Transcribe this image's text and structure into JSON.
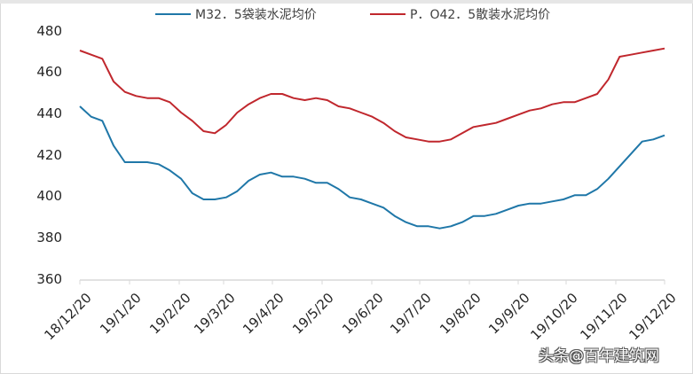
{
  "chart_data": {
    "type": "line",
    "title": "",
    "xlabel": "",
    "ylabel": "",
    "ylim": [
      360,
      480
    ],
    "yticks": [
      360,
      380,
      400,
      420,
      440,
      460,
      480
    ],
    "grid": false,
    "legend_position": "top",
    "x_tick_labels": [
      "18/12/20",
      "19/1/20",
      "19/2/20",
      "19/3/20",
      "19/4/20",
      "19/5/20",
      "19/6/20",
      "19/7/20",
      "19/8/20",
      "19/9/20",
      "19/10/20",
      "19/11/20",
      "19/12/20"
    ],
    "x": [
      "18/12/20",
      "18/12/27",
      "19/1/3",
      "19/1/10",
      "19/1/17",
      "19/1/24",
      "19/1/31",
      "19/2/7",
      "19/2/14",
      "19/2/21",
      "19/2/28",
      "19/3/7",
      "19/3/14",
      "19/3/21",
      "19/3/28",
      "19/4/4",
      "19/4/11",
      "19/4/18",
      "19/4/25",
      "19/5/2",
      "19/5/9",
      "19/5/16",
      "19/5/23",
      "19/5/30",
      "19/6/6",
      "19/6/13",
      "19/6/20",
      "19/6/27",
      "19/7/4",
      "19/7/11",
      "19/7/18",
      "19/7/25",
      "19/8/1",
      "19/8/8",
      "19/8/15",
      "19/8/22",
      "19/8/29",
      "19/9/5",
      "19/9/12",
      "19/9/19",
      "19/9/26",
      "19/10/3",
      "19/10/10",
      "19/10/17",
      "19/10/24",
      "19/10/31",
      "19/11/7",
      "19/11/14",
      "19/11/21",
      "19/11/28",
      "19/12/5",
      "19/12/12",
      "19/12/20"
    ],
    "series": [
      {
        "name": "M32．5袋装水泥均价",
        "color": "#1f77a8",
        "values": [
          444,
          439,
          437,
          425,
          417,
          417,
          417,
          416,
          413,
          409,
          402,
          399,
          399,
          400,
          403,
          408,
          411,
          412,
          410,
          410,
          409,
          407,
          407,
          404,
          400,
          399,
          397,
          395,
          391,
          388,
          386,
          386,
          385,
          386,
          388,
          391,
          391,
          392,
          394,
          396,
          397,
          397,
          398,
          399,
          401,
          401,
          404,
          409,
          415,
          421,
          427,
          428,
          430
        ]
      },
      {
        "name": "P．O42．5散装水泥均价",
        "color": "#c0272d",
        "values": [
          471,
          469,
          467,
          456,
          451,
          449,
          448,
          448,
          446,
          441,
          437,
          432,
          431,
          435,
          441,
          445,
          448,
          450,
          450,
          448,
          447,
          448,
          447,
          444,
          443,
          441,
          439,
          436,
          432,
          429,
          428,
          427,
          427,
          428,
          431,
          434,
          435,
          436,
          438,
          440,
          442,
          443,
          445,
          446,
          446,
          448,
          450,
          457,
          468,
          469,
          470,
          471,
          472
        ]
      }
    ]
  },
  "legend": {
    "items": [
      {
        "label": "M32．5袋装水泥均价",
        "color": "#1f77a8"
      },
      {
        "label": "P．O42．5散装水泥均价",
        "color": "#c0272d"
      }
    ]
  },
  "axis": {
    "y_labels": [
      "480",
      "460",
      "440",
      "420",
      "400",
      "380",
      "360"
    ],
    "x_labels": [
      "18/12/20",
      "19/1/20",
      "19/2/20",
      "19/3/20",
      "19/4/20",
      "19/5/20",
      "19/6/20",
      "19/7/20",
      "19/8/20",
      "19/9/20",
      "19/10/20",
      "19/11/20",
      "19/12/20"
    ]
  },
  "watermark": {
    "text": "头条@百年建筑网"
  }
}
